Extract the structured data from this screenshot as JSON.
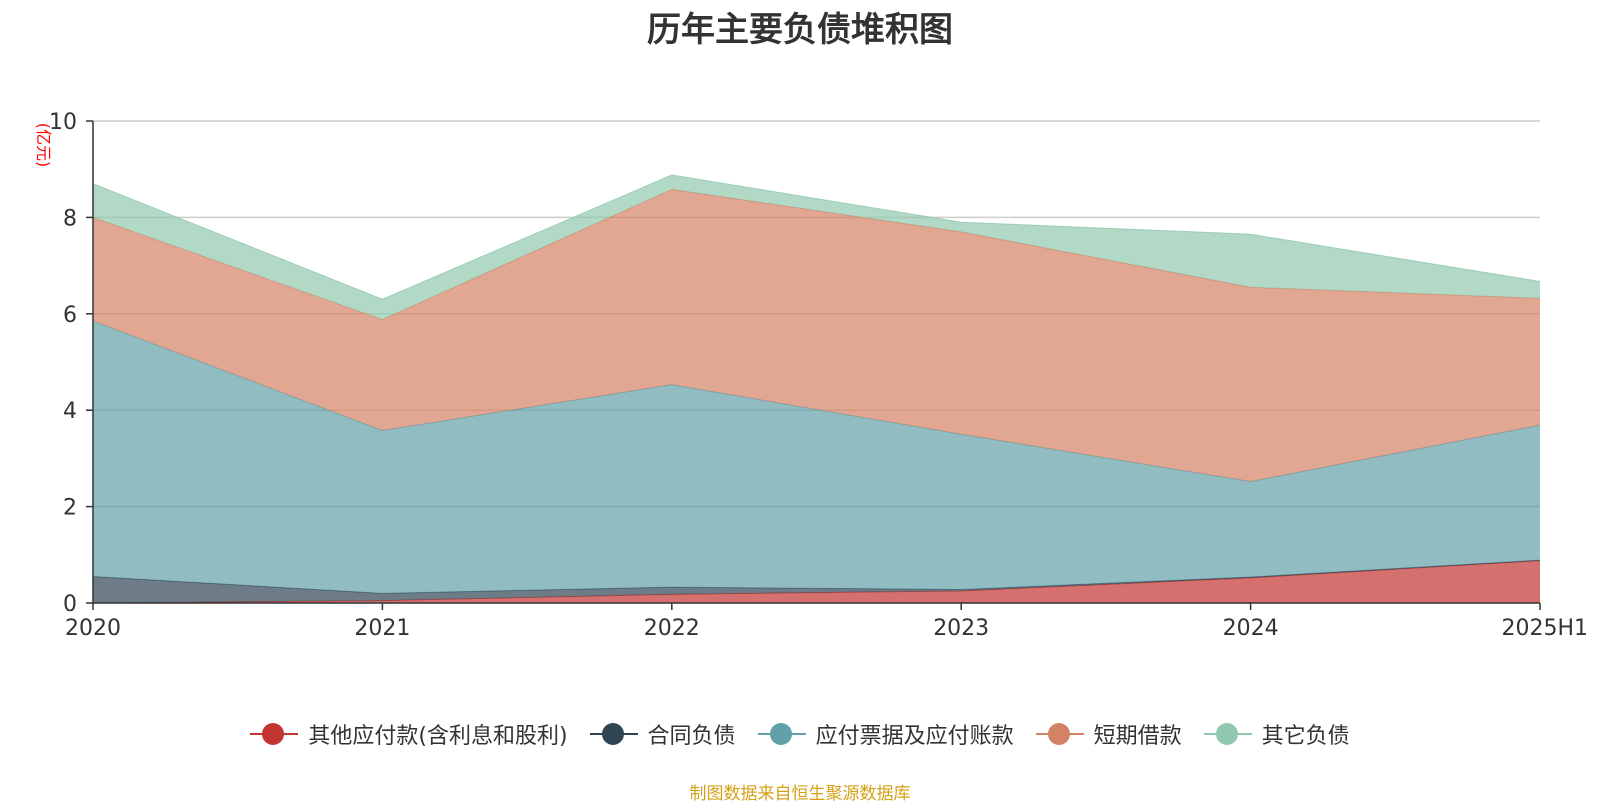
{
  "chart_data": {
    "type": "area",
    "stacked": true,
    "title": "历年主要负债堆积图",
    "unit_label": "(亿元)",
    "categories": [
      "2020",
      "2021",
      "2022",
      "2023",
      "2024",
      "2025H1"
    ],
    "ylim": [
      0,
      10
    ],
    "yticks": [
      0,
      2,
      4,
      6,
      8,
      10
    ],
    "grid": true,
    "legend_position": "bottom",
    "series": [
      {
        "name": "其他应付款(含利息和股利)",
        "color": "#c23531",
        "values": [
          0.0,
          0.05,
          0.18,
          0.25,
          0.52,
          0.88
        ]
      },
      {
        "name": "合同负债",
        "color": "#2f4554",
        "values": [
          0.55,
          0.15,
          0.15,
          0.03,
          0.02,
          0.01
        ]
      },
      {
        "name": "应付票据及应付账款",
        "color": "#61a0a8",
        "values": [
          5.3,
          3.38,
          4.2,
          3.22,
          1.98,
          2.8
        ]
      },
      {
        "name": "短期借款",
        "color": "#d48265",
        "values": [
          2.15,
          2.3,
          4.05,
          4.2,
          4.03,
          2.63
        ]
      },
      {
        "name": "其它负债",
        "color": "#91c7ae",
        "values": [
          0.7,
          0.42,
          0.3,
          0.2,
          1.1,
          0.35
        ]
      }
    ]
  },
  "source_text": "制图数据来自恒生聚源数据库",
  "colors": {
    "source_text": "#d4a017",
    "unit_label": "#ff0000",
    "gridline": "#cccccc",
    "axis": "#333333"
  }
}
